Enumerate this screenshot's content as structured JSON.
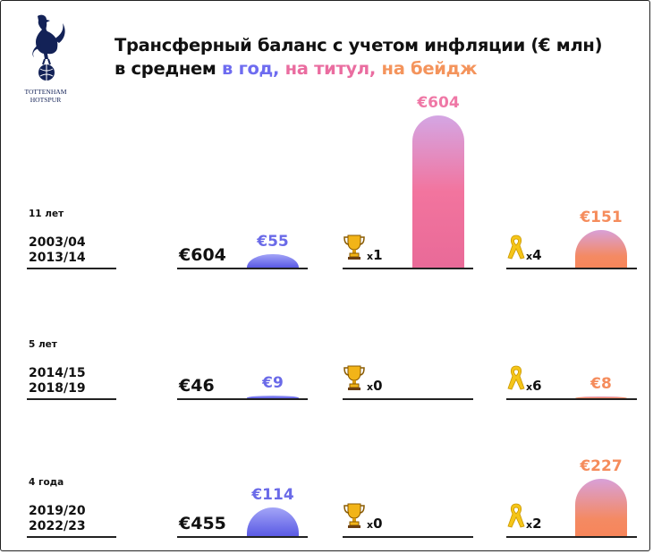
{
  "logo": {
    "name": "tottenham-hotspur-logo",
    "line1": "TOTTENHAM",
    "line2": "HOTSPUR",
    "color": "#132257"
  },
  "title": {
    "line1": "Трансферный баланс с учетом инфляции (€ млн)",
    "line2_prefix": "в среднем ",
    "per_year": "в год,",
    "per_title": "на титул,",
    "per_badge": "на бейдж"
  },
  "colors": {
    "per_year": "#6e6cf0",
    "per_title": "#ea6da0",
    "per_badge": "#f4945c"
  },
  "chart_data": {
    "type": "bar",
    "title": "Трансферный баланс с учетом инфляции (€ млн) в среднем в год, на титул, на бейдж",
    "rows": [
      {
        "period": "11 лет",
        "season_start": "2003/04",
        "season_end": "2013/14",
        "total": 604,
        "total_label": "€604",
        "per_year": 55,
        "per_year_label": "€55",
        "titles": 1,
        "titles_label": "1",
        "per_title": 604,
        "per_title_label": "€604",
        "badges": 4,
        "badges_label": "4",
        "per_badge": 151,
        "per_badge_label": "€151"
      },
      {
        "period": "5 лет",
        "season_start": "2014/15",
        "season_end": "2018/19",
        "total": 46,
        "total_label": "€46",
        "per_year": 9,
        "per_year_label": "€9",
        "titles": 0,
        "titles_label": "0",
        "per_title": 0,
        "per_title_label": "",
        "badges": 6,
        "badges_label": "6",
        "per_badge": 8,
        "per_badge_label": "€8"
      },
      {
        "period": "4 года",
        "season_start": "2019/20",
        "season_end": "2022/23",
        "total": 455,
        "total_label": "€455",
        "per_year": 114,
        "per_year_label": "€114",
        "titles": 0,
        "titles_label": "0",
        "per_title": 0,
        "per_title_label": "",
        "badges": 2,
        "badges_label": "2",
        "per_badge": 227,
        "per_badge_label": "€227"
      }
    ],
    "multiplier": "x",
    "icons": {
      "title": "trophy-icon",
      "badge": "yellow-ribbon-icon"
    }
  }
}
